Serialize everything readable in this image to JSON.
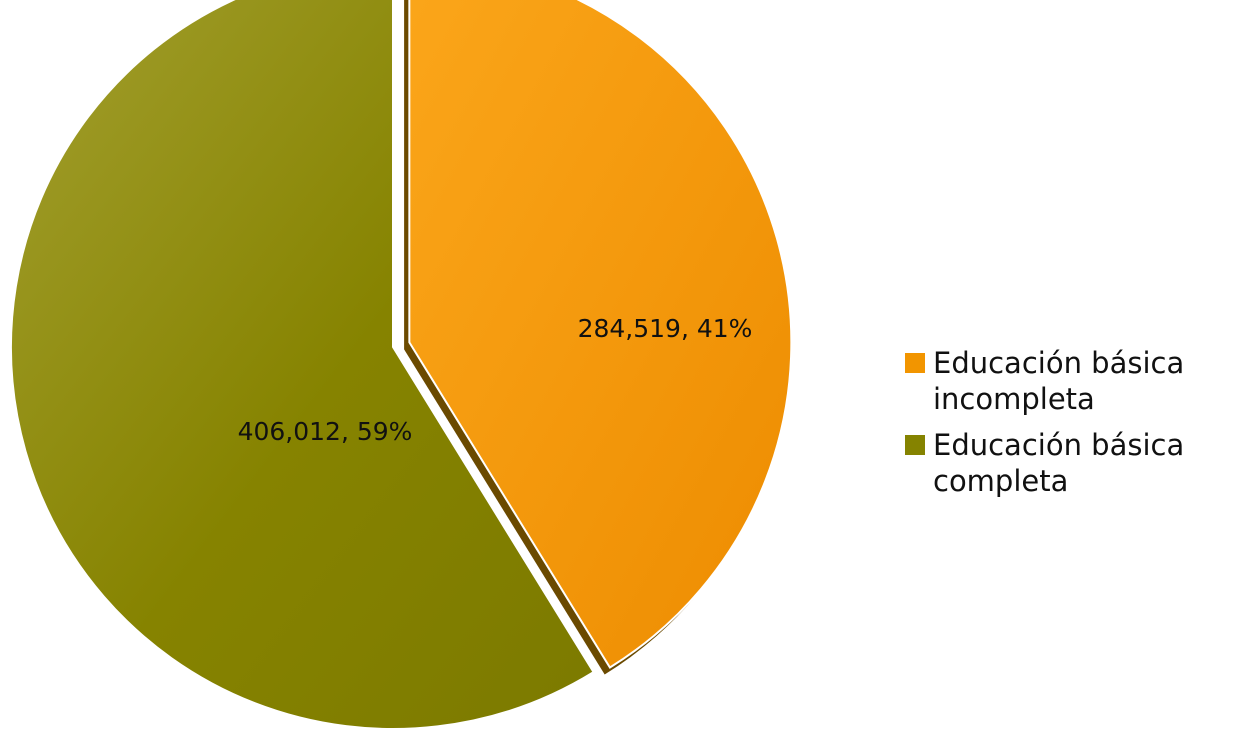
{
  "chart_data": {
    "type": "pie",
    "title": "",
    "legend_position": "right",
    "slices": [
      {
        "label": "Educación básica incompleta",
        "legend_lines": [
          "Educación básica",
          "incompleta"
        ],
        "value": 284519,
        "percent": 41,
        "data_label": "284,519, 41%",
        "color": "#f29500",
        "shade": "#6b4a00",
        "exploded": true
      },
      {
        "label": "Educación básica completa",
        "legend_lines": [
          "Educación básica",
          "completa"
        ],
        "value": 406012,
        "percent": 59,
        "data_label": "406,012, 59%",
        "color": "#858300",
        "shade": "#5f5e00",
        "exploded": false
      }
    ]
  }
}
